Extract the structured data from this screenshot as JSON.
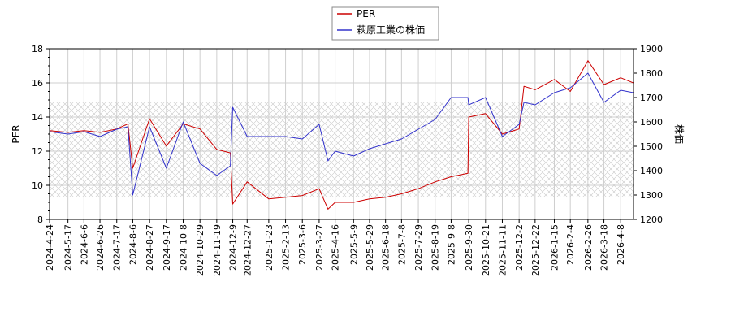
{
  "chart_data": {
    "type": "line",
    "legend": {
      "placement": "top-center",
      "entries": [
        "PER",
        "萩原工業の株価"
      ]
    },
    "y_left": {
      "label": "PER",
      "ylim": [
        8,
        18
      ],
      "ticks": [
        8,
        10,
        12,
        14,
        16,
        18
      ]
    },
    "y_right": {
      "label": "株価",
      "ylim": [
        1200,
        1900
      ],
      "ticks": [
        1200,
        1300,
        1400,
        1500,
        1600,
        1700,
        1800,
        1900
      ]
    },
    "x_ticks": [
      "2024-4-24",
      "2024-5-17",
      "2024-6-6",
      "2024-6-26",
      "2024-7-17",
      "2024-8-6",
      "2024-8-27",
      "2024-9-17",
      "2024-10-8",
      "2024-10-29",
      "2024-11-19",
      "2024-12-9",
      "2024-12-27",
      "2025-1-23",
      "2025-2-13",
      "2025-3-6",
      "2025-3-27",
      "2025-4-16",
      "2025-5-9",
      "2025-5-29",
      "2025-6-18",
      "2025-7-8",
      "2025-7-29",
      "2025-8-19",
      "2025-9-8",
      "2025-9-30",
      "2025-10-21",
      "2025-11-11",
      "2025-12-2",
      "2025-12-22",
      "2026-1-15",
      "2026-2-4",
      "2026-2-26",
      "2026-3-18",
      "2026-4-8"
    ],
    "shaded_band": {
      "axis": "left",
      "from": 9.3,
      "to": 14.9
    },
    "grid": true,
    "colors": {
      "per": "#cc0000",
      "price": "#3333cc"
    },
    "series": [
      {
        "name": "PER",
        "axis": "left",
        "x": [
          "2024-4-24",
          "2024-5-17",
          "2024-6-6",
          "2024-6-26",
          "2024-7-17",
          "2024-7-31",
          "2024-8-6",
          "2024-8-27",
          "2024-9-17",
          "2024-10-8",
          "2024-10-29",
          "2024-11-19",
          "2024-12-6",
          "2024-12-9",
          "2024-12-27",
          "2025-1-23",
          "2025-2-13",
          "2025-3-6",
          "2025-3-27",
          "2025-4-7",
          "2025-4-16",
          "2025-5-9",
          "2025-5-29",
          "2025-6-18",
          "2025-7-8",
          "2025-7-29",
          "2025-8-19",
          "2025-9-8",
          "2025-9-29",
          "2025-9-30",
          "2025-10-21",
          "2025-11-11",
          "2025-12-2",
          "2025-12-8",
          "2025-12-22",
          "2026-1-15",
          "2026-2-4",
          "2026-2-26",
          "2026-3-18",
          "2026-4-8",
          "2026-4-24"
        ],
        "values": [
          13.2,
          13.1,
          13.2,
          13.1,
          13.3,
          13.6,
          11.0,
          13.9,
          12.3,
          13.6,
          13.3,
          12.1,
          11.9,
          8.9,
          10.2,
          9.2,
          9.3,
          9.4,
          9.8,
          8.6,
          9.0,
          9.0,
          9.2,
          9.3,
          9.5,
          9.8,
          10.2,
          10.5,
          10.7,
          14.0,
          14.2,
          13.0,
          13.3,
          15.8,
          15.6,
          16.2,
          15.5,
          17.3,
          15.9,
          16.3,
          16.0
        ]
      },
      {
        "name": "萩原工業の株価",
        "axis": "right",
        "x": [
          "2024-4-24",
          "2024-5-17",
          "2024-6-6",
          "2024-6-26",
          "2024-7-17",
          "2024-7-31",
          "2024-8-6",
          "2024-8-27",
          "2024-9-17",
          "2024-10-8",
          "2024-10-29",
          "2024-11-19",
          "2024-12-6",
          "2024-12-9",
          "2024-12-27",
          "2025-1-23",
          "2025-2-13",
          "2025-3-6",
          "2025-3-27",
          "2025-4-7",
          "2025-4-16",
          "2025-5-9",
          "2025-5-29",
          "2025-6-18",
          "2025-7-8",
          "2025-7-29",
          "2025-8-19",
          "2025-9-8",
          "2025-9-29",
          "2025-9-30",
          "2025-10-21",
          "2025-11-11",
          "2025-12-2",
          "2025-12-8",
          "2025-12-22",
          "2026-1-15",
          "2026-2-4",
          "2026-2-26",
          "2026-3-18",
          "2026-4-8",
          "2026-4-24"
        ],
        "values": [
          1560,
          1550,
          1560,
          1540,
          1570,
          1580,
          1300,
          1580,
          1410,
          1600,
          1430,
          1380,
          1420,
          1660,
          1540,
          1540,
          1540,
          1530,
          1590,
          1440,
          1480,
          1460,
          1490,
          1510,
          1530,
          1570,
          1610,
          1700,
          1700,
          1670,
          1700,
          1540,
          1590,
          1680,
          1670,
          1720,
          1740,
          1800,
          1680,
          1730,
          1720
        ]
      }
    ]
  }
}
